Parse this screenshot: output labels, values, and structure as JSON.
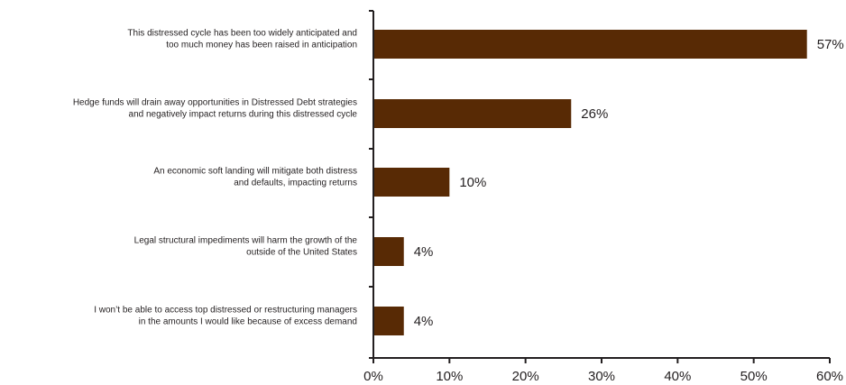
{
  "chart_data": {
    "type": "bar",
    "orientation": "horizontal",
    "categories": [
      [
        "This distressed cycle has been too widely anticipated and",
        "too much money has been raised in anticipation"
      ],
      [
        "Hedge funds will drain away opportunities in Distressed Debt strategies",
        "and negatively impact returns during this distressed cycle"
      ],
      [
        "An economic soft landing will mitigate both distress",
        "and defaults, impacting returns"
      ],
      [
        "Legal structural impediments will harm the growth of the",
        "outside of the United States"
      ],
      [
        "I won’t be able to access top distressed or restructuring managers",
        "in the amounts I would like because of excess demand"
      ]
    ],
    "values": [
      57,
      26,
      10,
      4,
      4
    ],
    "data_labels": [
      "57%",
      "26%",
      "10%",
      "4%",
      "4%"
    ],
    "xlim": [
      0,
      60
    ],
    "x_ticks": [
      0,
      10,
      20,
      30,
      40,
      50,
      60
    ],
    "x_tick_labels": [
      "0%",
      "10%",
      "20%",
      "30%",
      "40%",
      "50%",
      "60%"
    ],
    "grid": false,
    "bar_color": "#582a05",
    "axis_color": "#231f20"
  }
}
